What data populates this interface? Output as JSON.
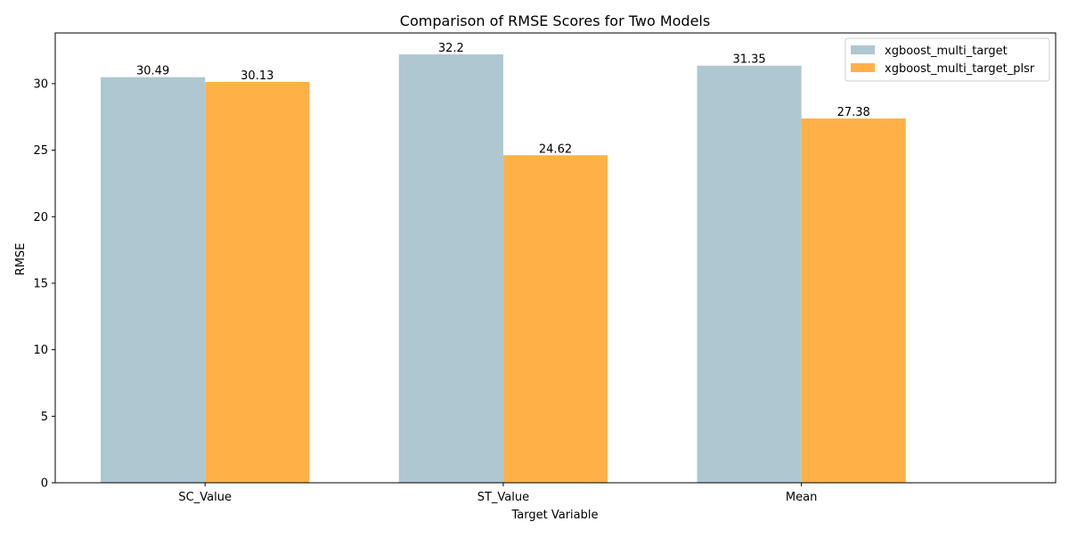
{
  "chart_data": {
    "type": "bar",
    "title": "Comparison of RMSE Scores for Two Models",
    "xlabel": "Target Variable",
    "ylabel": "RMSE",
    "categories": [
      "SC_Value",
      "ST_Value",
      "Mean"
    ],
    "series": [
      {
        "name": "xgboost_multi_target",
        "values": [
          30.49,
          32.2,
          31.35
        ],
        "labels": [
          "30.49",
          "32.2",
          "31.35"
        ],
        "color": "#aec7d0"
      },
      {
        "name": "xgboost_multi_target_plsr",
        "values": [
          30.13,
          24.62,
          27.38
        ],
        "labels": [
          "30.13",
          "24.62",
          "27.38"
        ],
        "color": "#ffb148"
      }
    ],
    "ylim": [
      0,
      33.81
    ],
    "yticks": [
      0,
      5,
      10,
      15,
      20,
      25,
      30
    ],
    "grid": false,
    "legend_position": "upper right"
  }
}
